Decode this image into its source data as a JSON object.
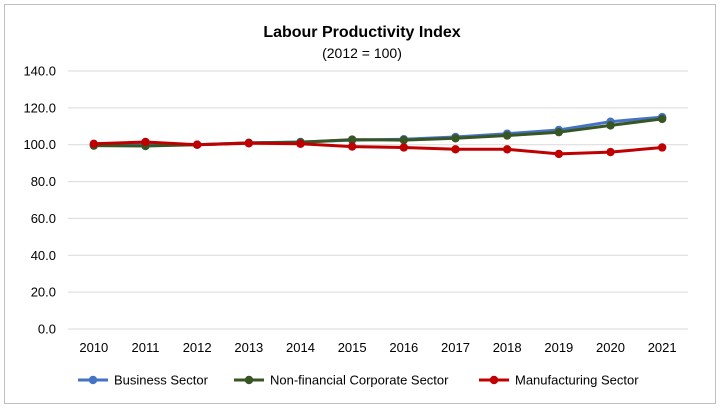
{
  "chart_data": {
    "type": "line",
    "title": "Labour Productivity Index",
    "subtitle": "(2012 = 100)",
    "xlabel": "",
    "ylabel": "",
    "ylim": [
      0,
      140
    ],
    "yticks": [
      "0.0",
      "20.0",
      "40.0",
      "60.0",
      "80.0",
      "100.0",
      "120.0",
      "140.0"
    ],
    "ytick_values": [
      0,
      20,
      40,
      60,
      80,
      100,
      120,
      140
    ],
    "categories": [
      "2010",
      "2011",
      "2012",
      "2013",
      "2014",
      "2015",
      "2016",
      "2017",
      "2018",
      "2019",
      "2020",
      "2021"
    ],
    "grid": true,
    "legend_position": "bottom",
    "series": [
      {
        "name": "Business Sector",
        "color": "#4472C4",
        "values": [
          99.8,
          99.9,
          100.0,
          101.0,
          101.5,
          102.5,
          103.0,
          104.2,
          106.0,
          108.0,
          112.5,
          115.0
        ]
      },
      {
        "name": "Non-financial Corporate Sector",
        "color": "#375623",
        "values": [
          99.5,
          99.3,
          100.0,
          101.0,
          101.3,
          102.8,
          102.5,
          103.5,
          105.0,
          106.8,
          110.5,
          114.0
        ]
      },
      {
        "name": "Manufacturing Sector",
        "color": "#C00000",
        "values": [
          100.5,
          101.5,
          100.0,
          100.8,
          100.5,
          99.0,
          98.5,
          97.5,
          97.5,
          95.0,
          96.0,
          98.5
        ]
      }
    ]
  }
}
